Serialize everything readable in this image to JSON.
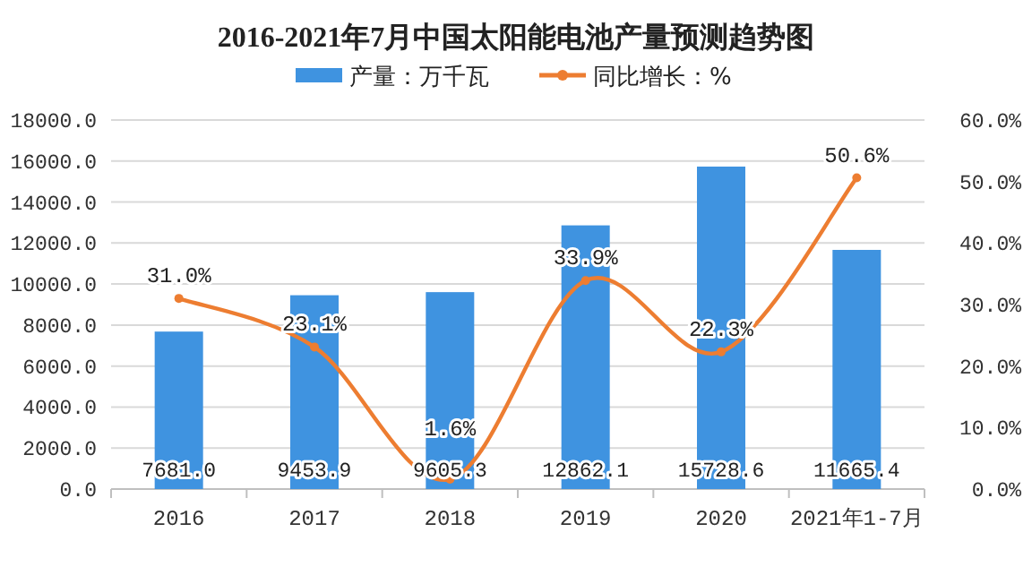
{
  "chart_data": {
    "type": "bar",
    "title": "2016-2021年7月中国太阳能电池产量预测趋势图",
    "categories": [
      "2016",
      "2017",
      "2018",
      "2019",
      "2020",
      "2021年1-7月"
    ],
    "series": [
      {
        "name": "产量：万千瓦",
        "type": "bar",
        "color": "#3f93e0",
        "values": [
          7681.0,
          9453.9,
          9605.3,
          12862.1,
          15728.6,
          11665.4
        ],
        "value_labels": [
          "7681.0",
          "9453.9",
          "9605.3",
          "12862.1",
          "15728.6",
          "11665.4"
        ]
      },
      {
        "name": "同比增长：%",
        "type": "line",
        "axis": "y2",
        "color": "#ed7d31",
        "marker": "circle",
        "values": [
          31.0,
          23.1,
          1.6,
          33.9,
          22.3,
          50.6
        ],
        "value_labels": [
          "31.0%",
          "23.1%",
          "1.6%",
          "33.9%",
          "22.3%",
          "50.6%"
        ]
      }
    ],
    "ylim": [
      0,
      18000
    ],
    "yticks": [
      {
        "value": 0,
        "label": "0.0"
      },
      {
        "value": 2000,
        "label": "2000.0"
      },
      {
        "value": 4000,
        "label": "4000.0"
      },
      {
        "value": 6000,
        "label": "6000.0"
      },
      {
        "value": 8000,
        "label": "8000.0"
      },
      {
        "value": 10000,
        "label": "10000.0"
      },
      {
        "value": 12000,
        "label": "12000.0"
      },
      {
        "value": 14000,
        "label": "14000.0"
      },
      {
        "value": 16000,
        "label": "16000.0"
      },
      {
        "value": 18000,
        "label": "18000.0"
      }
    ],
    "y2lim": [
      0,
      60
    ],
    "y2ticks": [
      {
        "value": 0,
        "label": "0.0%"
      },
      {
        "value": 10,
        "label": "10.0%"
      },
      {
        "value": 20,
        "label": "20.0%"
      },
      {
        "value": 30,
        "label": "30.0%"
      },
      {
        "value": 40,
        "label": "40.0%"
      },
      {
        "value": 50,
        "label": "50.0%"
      },
      {
        "value": 60,
        "label": "60.0%"
      }
    ],
    "grid": "y",
    "legend": "top"
  }
}
